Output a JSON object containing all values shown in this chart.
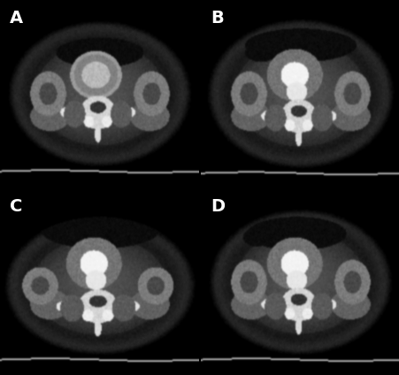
{
  "figure_width": 4.52,
  "figure_height": 4.24,
  "dpi": 100,
  "background_color": "#000000",
  "panel_labels": [
    "A",
    "B",
    "C",
    "D"
  ],
  "label_color": "#ffffff",
  "label_fontsize": 14,
  "label_fontweight": "bold"
}
